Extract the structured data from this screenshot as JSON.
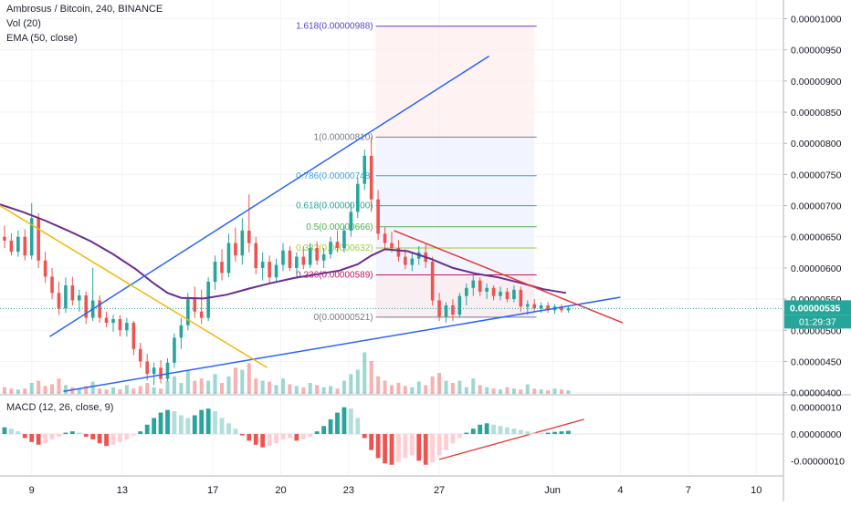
{
  "header": {
    "symbol_line": "Ambrosus / Bitcoin, 240, BINANCE",
    "indicator_volume": "Vol (20)",
    "indicator_ema": "EMA (50, close)"
  },
  "macd": {
    "label": "MACD (12, 26, close, 9)",
    "axis_ticks": [
      {
        "value": 1e-07,
        "label": "0.00000010"
      },
      {
        "value": 0,
        "label": "0.00000000"
      },
      {
        "value": -1e-07,
        "label": "-0.00000010"
      }
    ],
    "ylim": [
      -1.5e-07,
      1.4e-07
    ]
  },
  "price_axis": {
    "ticks": [
      {
        "value": 1e-05,
        "label": "0.00001000"
      },
      {
        "value": 9.5e-06,
        "label": "0.00000950"
      },
      {
        "value": 9e-06,
        "label": "0.00000900"
      },
      {
        "value": 8.5e-06,
        "label": "0.00000850"
      },
      {
        "value": 8e-06,
        "label": "0.00000800"
      },
      {
        "value": 7.5e-06,
        "label": "0.00000750"
      },
      {
        "value": 7e-06,
        "label": "0.00000700"
      },
      {
        "value": 6.5e-06,
        "label": "0.00000650"
      },
      {
        "value": 6e-06,
        "label": "0.00000600"
      },
      {
        "value": 5.5e-06,
        "label": "0.00000550"
      },
      {
        "value": 5e-06,
        "label": "0.00000500"
      },
      {
        "value": 4.5e-06,
        "label": "0.00000450"
      },
      {
        "value": 4e-06,
        "label": "0.00000400"
      }
    ],
    "current_price_label": "0.00000535",
    "countdown_label": "01:29:37"
  },
  "time_axis": {
    "ticks": [
      {
        "label": "9",
        "day": 9
      },
      {
        "label": "13",
        "day": 13
      },
      {
        "label": "17",
        "day": 17
      },
      {
        "label": "20",
        "day": 20
      },
      {
        "label": "23",
        "day": 23
      },
      {
        "label": "27",
        "day": 27
      },
      {
        "label": "Jun",
        "day": 32
      },
      {
        "label": "4",
        "day": 35
      },
      {
        "label": "7",
        "day": 38
      },
      {
        "label": "10",
        "day": 41
      }
    ]
  },
  "fibonacci": {
    "levels": [
      {
        "ratio": 1.618,
        "price": 9.88e-06,
        "label": "1.618(0.00000988)",
        "color": "#5b3fc7"
      },
      {
        "ratio": 1,
        "price": 8.1e-06,
        "label": "1(0.00000810)",
        "color": "#787b86"
      },
      {
        "ratio": 0.786,
        "price": 7.48e-06,
        "label": "0.786(0.00000748)",
        "color": "#3fa0d8"
      },
      {
        "ratio": 0.618,
        "price": 7e-06,
        "label": "0.618(0.00000700)",
        "color": "#26a69a"
      },
      {
        "ratio": 0.5,
        "price": 6.66e-06,
        "label": "0.5(0.00000666)",
        "color": "#4caf50"
      },
      {
        "ratio": 0.382,
        "price": 6.32e-06,
        "label": "0.382(0.00000632)",
        "color": "#9ccc3a"
      },
      {
        "ratio": 0.236,
        "price": 5.89e-06,
        "label": "0.236(0.00000589)",
        "color": "#c2185b"
      },
      {
        "ratio": 0,
        "price": 5.21e-06,
        "label": "0(0.00000521)",
        "color": "#787b86"
      }
    ]
  },
  "chart_data": {
    "type": "candlestick",
    "title": "Ambrosus / Bitcoin, 240, BINANCE",
    "x_unit": "day of May (32 = Jun 1)",
    "ylim": [
      3.98e-06,
      1.03e-05
    ],
    "xlim": [
      7.6,
      42.2
    ],
    "colors": {
      "up": "#26a69a",
      "down": "#ef5350",
      "ema": "#6a2c91",
      "trend": "#2962ff",
      "red_line": "#e53935",
      "yellow_line": "#f0b90b"
    },
    "ema_50": [
      [
        7.6,
        7.02e-06
      ],
      [
        8.6,
        6.9e-06
      ],
      [
        9.6,
        6.76e-06
      ],
      [
        10.6,
        6.6e-06
      ],
      [
        11.6,
        6.43e-06
      ],
      [
        12.6,
        6.22e-06
      ],
      [
        13.6,
        5.98e-06
      ],
      [
        14.4,
        5.75e-06
      ],
      [
        15.0,
        5.6e-06
      ],
      [
        15.6,
        5.52e-06
      ],
      [
        16.6,
        5.51e-06
      ],
      [
        17.6,
        5.57e-06
      ],
      [
        18.6,
        5.67e-06
      ],
      [
        19.6,
        5.76e-06
      ],
      [
        20.6,
        5.84e-06
      ],
      [
        21.6,
        5.9e-06
      ],
      [
        22.6,
        5.96e-06
      ],
      [
        23.4,
        6.06e-06
      ],
      [
        24.0,
        6.2e-06
      ],
      [
        24.6,
        6.3e-06
      ],
      [
        25.6,
        6.27e-06
      ],
      [
        26.6,
        6.15e-06
      ],
      [
        27.6,
        6e-06
      ],
      [
        28.6,
        5.91e-06
      ],
      [
        29.6,
        5.85e-06
      ],
      [
        30.6,
        5.76e-06
      ],
      [
        31.6,
        5.66e-06
      ],
      [
        32.6,
        5.6e-06
      ]
    ],
    "trendlines": [
      {
        "name": "rising-channel-top",
        "from": [
          9.8,
          4.9e-06
        ],
        "to": [
          29.2,
          9.4e-06
        ],
        "color": "#2962ff"
      },
      {
        "name": "rising-support",
        "from": [
          10.4,
          4.02e-06
        ],
        "to": [
          35.0,
          5.53e-06
        ],
        "color": "#2962ff"
      },
      {
        "name": "descending-resistance",
        "from": [
          25.0,
          6.6e-06
        ],
        "to": [
          35.1,
          5.12e-06
        ],
        "color": "#e53935"
      },
      {
        "name": "falling-wedge-top",
        "from": [
          7.6,
          7e-06
        ],
        "to": [
          19.4,
          4.4e-06
        ],
        "color": "#f0b90b"
      },
      {
        "name": "macd-rising-line",
        "from": [
          27.0,
          -9.5e-08
        ],
        "to": [
          33.4,
          5.5e-08
        ],
        "color": "#e53935",
        "pane": "macd"
      }
    ],
    "candles": [
      {
        "day": 7.8,
        "o": 6.5e-06,
        "h": 6.68e-06,
        "l": 6.32e-06,
        "c": 6.44e-06
      },
      {
        "day": 8.1,
        "o": 6.44e-06,
        "h": 6.56e-06,
        "l": 6.2e-06,
        "c": 6.26e-06
      },
      {
        "day": 8.4,
        "o": 6.26e-06,
        "h": 6.6e-06,
        "l": 6.18e-06,
        "c": 6.5e-06
      },
      {
        "day": 8.7,
        "o": 6.5e-06,
        "h": 6.62e-06,
        "l": 6.12e-06,
        "c": 6.2e-06
      },
      {
        "day": 9.0,
        "o": 6.2e-06,
        "h": 7.04e-06,
        "l": 6.14e-06,
        "c": 6.8e-06
      },
      {
        "day": 9.3,
        "o": 6.8e-06,
        "h": 6.88e-06,
        "l": 6e-06,
        "c": 6.12e-06
      },
      {
        "day": 9.6,
        "o": 6.12e-06,
        "h": 6.26e-06,
        "l": 5.76e-06,
        "c": 5.86e-06
      },
      {
        "day": 9.9,
        "o": 5.86e-06,
        "h": 6e-06,
        "l": 5.5e-06,
        "c": 5.6e-06
      },
      {
        "day": 10.2,
        "o": 5.6e-06,
        "h": 5.78e-06,
        "l": 5.25e-06,
        "c": 5.35e-06
      },
      {
        "day": 10.5,
        "o": 5.35e-06,
        "h": 5.85e-06,
        "l": 5.28e-06,
        "c": 5.72e-06
      },
      {
        "day": 10.8,
        "o": 5.72e-06,
        "h": 5.86e-06,
        "l": 5.4e-06,
        "c": 5.48e-06
      },
      {
        "day": 11.1,
        "o": 5.48e-06,
        "h": 5.65e-06,
        "l": 5.3e-06,
        "c": 5.56e-06
      },
      {
        "day": 11.4,
        "o": 5.56e-06,
        "h": 5.62e-06,
        "l": 5.1e-06,
        "c": 5.2e-06
      },
      {
        "day": 11.7,
        "o": 5.2e-06,
        "h": 6e-06,
        "l": 5.15e-06,
        "c": 5.48e-06
      },
      {
        "day": 12.0,
        "o": 5.48e-06,
        "h": 5.56e-06,
        "l": 5.12e-06,
        "c": 5.2e-06
      },
      {
        "day": 12.3,
        "o": 5.2e-06,
        "h": 5.3e-06,
        "l": 5.05e-06,
        "c": 5.12e-06
      },
      {
        "day": 12.6,
        "o": 5.12e-06,
        "h": 5.25e-06,
        "l": 4.98e-06,
        "c": 5.18e-06
      },
      {
        "day": 12.9,
        "o": 5.18e-06,
        "h": 5.24e-06,
        "l": 4.9e-06,
        "c": 5e-06
      },
      {
        "day": 13.2,
        "o": 5e-06,
        "h": 5.2e-06,
        "l": 4.9e-06,
        "c": 5.12e-06
      },
      {
        "day": 13.5,
        "o": 5.12e-06,
        "h": 5.15e-06,
        "l": 4.6e-06,
        "c": 4.7e-06
      },
      {
        "day": 13.8,
        "o": 4.7e-06,
        "h": 4.8e-06,
        "l": 4.4e-06,
        "c": 4.5e-06
      },
      {
        "day": 14.1,
        "o": 4.5e-06,
        "h": 4.62e-06,
        "l": 4.2e-06,
        "c": 4.3e-06
      },
      {
        "day": 14.4,
        "o": 4.3e-06,
        "h": 4.48e-06,
        "l": 4.12e-06,
        "c": 4.4e-06
      },
      {
        "day": 14.7,
        "o": 4.4e-06,
        "h": 4.52e-06,
        "l": 4.15e-06,
        "c": 4.22e-06
      },
      {
        "day": 15.0,
        "o": 4.22e-06,
        "h": 4.55e-06,
        "l": 4.18e-06,
        "c": 4.48e-06
      },
      {
        "day": 15.3,
        "o": 4.48e-06,
        "h": 4.95e-06,
        "l": 4.4e-06,
        "c": 4.88e-06
      },
      {
        "day": 15.6,
        "o": 4.88e-06,
        "h": 5.2e-06,
        "l": 4.7e-06,
        "c": 5.08e-06
      },
      {
        "day": 15.9,
        "o": 5.08e-06,
        "h": 5.6e-06,
        "l": 5e-06,
        "c": 5.5e-06
      },
      {
        "day": 16.2,
        "o": 5.5e-06,
        "h": 5.7e-06,
        "l": 5.2e-06,
        "c": 5.3e-06
      },
      {
        "day": 16.5,
        "o": 5.3e-06,
        "h": 5.65e-06,
        "l": 5.1e-06,
        "c": 5.2e-06
      },
      {
        "day": 16.8,
        "o": 5.2e-06,
        "h": 5.85e-06,
        "l": 5.15e-06,
        "c": 5.78e-06
      },
      {
        "day": 17.1,
        "o": 5.78e-06,
        "h": 6.2e-06,
        "l": 5.65e-06,
        "c": 6.1e-06
      },
      {
        "day": 17.4,
        "o": 6.1e-06,
        "h": 6.3e-06,
        "l": 5.8e-06,
        "c": 5.92e-06
      },
      {
        "day": 17.7,
        "o": 5.92e-06,
        "h": 6.55e-06,
        "l": 5.85e-06,
        "c": 6.4e-06
      },
      {
        "day": 18.0,
        "o": 6.4e-06,
        "h": 6.65e-06,
        "l": 6.1e-06,
        "c": 6.2e-06
      },
      {
        "day": 18.3,
        "o": 6.2e-06,
        "h": 6.8e-06,
        "l": 6.05e-06,
        "c": 6.6e-06
      },
      {
        "day": 18.6,
        "o": 6.6e-06,
        "h": 7.18e-06,
        "l": 6.25e-06,
        "c": 6.4e-06
      },
      {
        "day": 18.9,
        "o": 6.4e-06,
        "h": 6.5e-06,
        "l": 5.9e-06,
        "c": 6e-06
      },
      {
        "day": 19.2,
        "o": 6e-06,
        "h": 6.25e-06,
        "l": 5.8e-06,
        "c": 6.1e-06
      },
      {
        "day": 19.5,
        "o": 6.1e-06,
        "h": 6.2e-06,
        "l": 5.75e-06,
        "c": 5.85e-06
      },
      {
        "day": 19.8,
        "o": 5.85e-06,
        "h": 6.15e-06,
        "l": 5.78e-06,
        "c": 6.05e-06
      },
      {
        "day": 20.1,
        "o": 6.05e-06,
        "h": 6.4e-06,
        "l": 5.95e-06,
        "c": 6.28e-06
      },
      {
        "day": 20.4,
        "o": 6.28e-06,
        "h": 6.35e-06,
        "l": 5.95e-06,
        "c": 6e-06
      },
      {
        "day": 20.7,
        "o": 6e-06,
        "h": 6.25e-06,
        "l": 5.9e-06,
        "c": 6.18e-06
      },
      {
        "day": 21.0,
        "o": 6.18e-06,
        "h": 6.35e-06,
        "l": 5.98e-06,
        "c": 6.05e-06
      },
      {
        "day": 21.3,
        "o": 6.05e-06,
        "h": 6.4e-06,
        "l": 6e-06,
        "c": 6.32e-06
      },
      {
        "day": 21.6,
        "o": 6.32e-06,
        "h": 6.42e-06,
        "l": 6.05e-06,
        "c": 6.12e-06
      },
      {
        "day": 21.9,
        "o": 6.12e-06,
        "h": 6.32e-06,
        "l": 6e-06,
        "c": 6.22e-06
      },
      {
        "day": 22.2,
        "o": 6.22e-06,
        "h": 6.5e-06,
        "l": 6.15e-06,
        "c": 6.42e-06
      },
      {
        "day": 22.5,
        "o": 6.42e-06,
        "h": 6.6e-06,
        "l": 6.25e-06,
        "c": 6.32e-06
      },
      {
        "day": 22.8,
        "o": 6.32e-06,
        "h": 6.68e-06,
        "l": 6.25e-06,
        "c": 6.6e-06
      },
      {
        "day": 23.1,
        "o": 6.6e-06,
        "h": 7.05e-06,
        "l": 6.5e-06,
        "c": 6.9e-06
      },
      {
        "day": 23.4,
        "o": 6.9e-06,
        "h": 7.45e-06,
        "l": 6.8e-06,
        "c": 7.35e-06
      },
      {
        "day": 23.7,
        "o": 7.35e-06,
        "h": 7.9e-06,
        "l": 7.25e-06,
        "c": 7.8e-06
      },
      {
        "day": 24.0,
        "o": 7.8e-06,
        "h": 8.1e-06,
        "l": 6.9e-06,
        "c": 7.1e-06
      },
      {
        "day": 24.3,
        "o": 7.1e-06,
        "h": 7.25e-06,
        "l": 6.45e-06,
        "c": 6.55e-06
      },
      {
        "day": 24.6,
        "o": 6.55e-06,
        "h": 6.65e-06,
        "l": 6.3e-06,
        "c": 6.4e-06
      },
      {
        "day": 24.9,
        "o": 6.4e-06,
        "h": 6.58e-06,
        "l": 6.25e-06,
        "c": 6.32e-06
      },
      {
        "day": 25.2,
        "o": 6.32e-06,
        "h": 6.45e-06,
        "l": 6.1e-06,
        "c": 6.18e-06
      },
      {
        "day": 25.5,
        "o": 6.18e-06,
        "h": 6.3e-06,
        "l": 5.98e-06,
        "c": 6.05e-06
      },
      {
        "day": 25.8,
        "o": 6.05e-06,
        "h": 6.25e-06,
        "l": 5.95e-06,
        "c": 6.15e-06
      },
      {
        "day": 26.1,
        "o": 6.15e-06,
        "h": 6.35e-06,
        "l": 6.05e-06,
        "c": 6.25e-06
      },
      {
        "day": 26.4,
        "o": 6.25e-06,
        "h": 6.4e-06,
        "l": 6e-06,
        "c": 6.1e-06
      },
      {
        "day": 26.7,
        "o": 6.1e-06,
        "h": 6.18e-06,
        "l": 5.4e-06,
        "c": 5.48e-06
      },
      {
        "day": 27.0,
        "o": 5.48e-06,
        "h": 5.6e-06,
        "l": 5.15e-06,
        "c": 5.22e-06
      },
      {
        "day": 27.3,
        "o": 5.22e-06,
        "h": 5.45e-06,
        "l": 5.12e-06,
        "c": 5.4e-06
      },
      {
        "day": 27.6,
        "o": 5.4e-06,
        "h": 5.5e-06,
        "l": 5.15e-06,
        "c": 5.25e-06
      },
      {
        "day": 27.9,
        "o": 5.25e-06,
        "h": 5.6e-06,
        "l": 5.2e-06,
        "c": 5.55e-06
      },
      {
        "day": 28.2,
        "o": 5.55e-06,
        "h": 5.75e-06,
        "l": 5.4e-06,
        "c": 5.68e-06
      },
      {
        "day": 28.5,
        "o": 5.68e-06,
        "h": 5.9e-06,
        "l": 5.55e-06,
        "c": 5.8e-06
      },
      {
        "day": 28.8,
        "o": 5.8e-06,
        "h": 5.85e-06,
        "l": 5.55e-06,
        "c": 5.62e-06
      },
      {
        "day": 29.1,
        "o": 5.62e-06,
        "h": 5.75e-06,
        "l": 5.5e-06,
        "c": 5.68e-06
      },
      {
        "day": 29.4,
        "o": 5.68e-06,
        "h": 5.72e-06,
        "l": 5.48e-06,
        "c": 5.55e-06
      },
      {
        "day": 29.7,
        "o": 5.55e-06,
        "h": 5.7e-06,
        "l": 5.48e-06,
        "c": 5.62e-06
      },
      {
        "day": 30.0,
        "o": 5.62e-06,
        "h": 5.68e-06,
        "l": 5.45e-06,
        "c": 5.5e-06
      },
      {
        "day": 30.3,
        "o": 5.5e-06,
        "h": 5.72e-06,
        "l": 5.45e-06,
        "c": 5.65e-06
      },
      {
        "day": 30.6,
        "o": 5.65e-06,
        "h": 5.7e-06,
        "l": 5.3e-06,
        "c": 5.38e-06
      },
      {
        "day": 30.9,
        "o": 5.38e-06,
        "h": 5.48e-06,
        "l": 5.25e-06,
        "c": 5.42e-06
      },
      {
        "day": 31.2,
        "o": 5.42e-06,
        "h": 5.5e-06,
        "l": 5.3e-06,
        "c": 5.35e-06
      },
      {
        "day": 31.5,
        "o": 5.35e-06,
        "h": 5.45e-06,
        "l": 5.28e-06,
        "c": 5.4e-06
      },
      {
        "day": 31.8,
        "o": 5.4e-06,
        "h": 5.45e-06,
        "l": 5.28e-06,
        "c": 5.32e-06
      },
      {
        "day": 32.1,
        "o": 5.32e-06,
        "h": 5.42e-06,
        "l": 5.26e-06,
        "c": 5.38e-06
      },
      {
        "day": 32.4,
        "o": 5.38e-06,
        "h": 5.42e-06,
        "l": 5.28e-06,
        "c": 5.32e-06
      },
      {
        "day": 32.7,
        "o": 5.32e-06,
        "h": 5.4e-06,
        "l": 5.28e-06,
        "c": 5.35e-06
      }
    ],
    "volume_ratio": [
      0.15,
      0.12,
      0.1,
      0.12,
      0.25,
      0.3,
      0.18,
      0.22,
      0.35,
      0.2,
      0.15,
      0.12,
      0.18,
      0.28,
      0.12,
      0.1,
      0.15,
      0.1,
      0.2,
      0.12,
      0.18,
      0.25,
      0.15,
      0.12,
      0.3,
      0.4,
      0.25,
      0.55,
      0.3,
      0.35,
      0.3,
      0.45,
      0.25,
      0.4,
      0.6,
      0.55,
      0.7,
      0.35,
      0.3,
      0.28,
      0.2,
      0.35,
      0.22,
      0.18,
      0.15,
      0.25,
      0.2,
      0.15,
      0.18,
      0.12,
      0.3,
      0.45,
      0.55,
      0.95,
      0.75,
      0.4,
      0.3,
      0.2,
      0.25,
      0.18,
      0.15,
      0.28,
      0.2,
      0.4,
      0.48,
      0.3,
      0.25,
      0.3,
      0.15,
      0.35,
      0.2,
      0.15,
      0.12,
      0.1,
      0.15,
      0.12,
      0.1,
      0.22,
      0.12,
      0.1,
      0.08,
      0.12,
      0.1,
      0.08
    ],
    "macd_histogram": [
      2.5e-08,
      2e-08,
      1e-08,
      -1.5e-08,
      -3e-08,
      -4e-08,
      -3.5e-08,
      -2e-08,
      -1e-08,
      5e-09,
      1e-08,
      5e-09,
      -1e-08,
      -2e-08,
      -3.5e-08,
      -4.5e-08,
      -4e-08,
      -3e-08,
      -2e-08,
      -5e-09,
      1e-08,
      3.5e-08,
      6e-08,
      8e-08,
      9e-08,
      8.5e-08,
      7e-08,
      6e-08,
      7e-08,
      9e-08,
      9.5e-08,
      8.5e-08,
      6e-08,
      4e-08,
      2e-08,
      -5e-09,
      -2.5e-08,
      -4e-08,
      -5e-08,
      -4.5e-08,
      -3.5e-08,
      -2e-08,
      -1.5e-08,
      -2.5e-08,
      -2e-08,
      -1e-08,
      1e-08,
      3e-08,
      5.5e-08,
      8e-08,
      1e-07,
      9.5e-08,
      6e-08,
      -1.5e-08,
      -6e-08,
      -9e-08,
      -1.1e-07,
      -1.15e-07,
      -1.05e-07,
      -9e-08,
      -8e-08,
      -1e-07,
      -1.15e-07,
      -1.05e-07,
      -8e-08,
      -6e-08,
      -3.5e-08,
      -1.5e-08,
      5e-09,
      2e-08,
      3.5e-08,
      4e-08,
      3.5e-08,
      3e-08,
      2.5e-08,
      2e-08,
      1.5e-08,
      1e-08,
      5e-09,
      3e-09,
      5e-09,
      8e-09,
      1e-08,
      1.2e-08
    ],
    "current_price": 5.35e-06
  }
}
